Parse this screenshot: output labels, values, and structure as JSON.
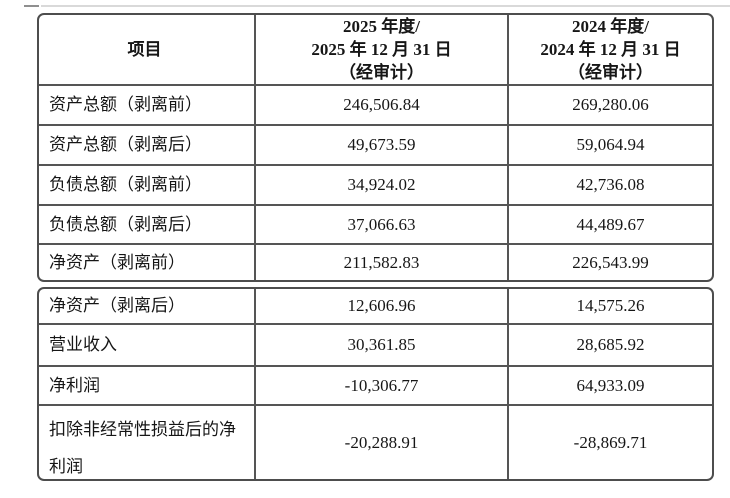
{
  "page": {
    "background": "#ffffff",
    "border_color": "#4d4d4d",
    "text_color": "#161616"
  },
  "table": {
    "header": {
      "col1": "项目",
      "col2_lines": [
        "2025 年度/",
        "2025 年 12 月 31 日",
        "（经审计）"
      ],
      "col3_lines": [
        "2024 年度/",
        "2024 年 12 月 31 日",
        "（经审计）"
      ]
    },
    "section1": [
      {
        "label": "资产总额（剥离前）",
        "v2025": "246,506.84",
        "v2024": "269,280.06"
      },
      {
        "label": "资产总额（剥离后）",
        "v2025": "49,673.59",
        "v2024": "59,064.94"
      },
      {
        "label": "负债总额（剥离前）",
        "v2025": "34,924.02",
        "v2024": "42,736.08"
      },
      {
        "label": "负债总额（剥离后）",
        "v2025": "37,066.63",
        "v2024": "44,489.67"
      },
      {
        "label": "净资产（剥离前）",
        "v2025": "211,582.83",
        "v2024": "226,543.99"
      }
    ],
    "section2": [
      {
        "label": "净资产（剥离后）",
        "v2025": "12,606.96",
        "v2024": "14,575.26"
      },
      {
        "label": "营业收入",
        "v2025": "30,361.85",
        "v2024": "28,685.92"
      },
      {
        "label": "净利润",
        "v2025": "-10,306.77",
        "v2024": "64,933.09"
      },
      {
        "label": "扣除非经常性损益后的净利润",
        "v2025": "-20,288.91",
        "v2024": "-28,869.71"
      }
    ]
  }
}
